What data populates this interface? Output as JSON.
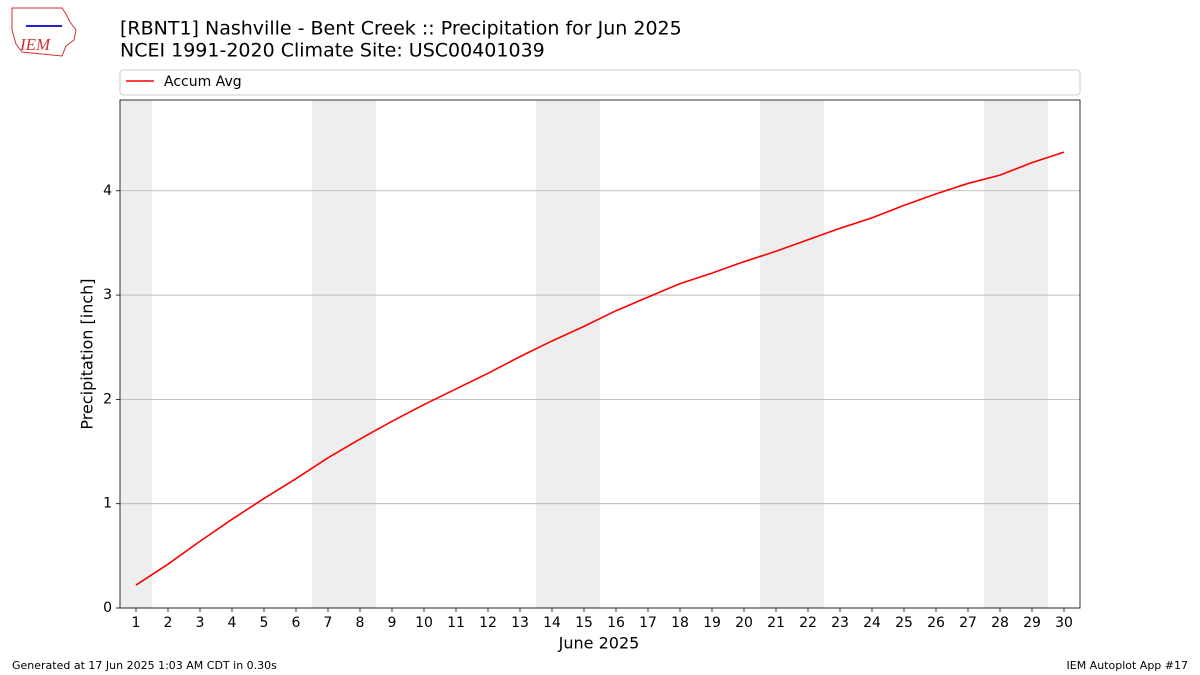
{
  "chart_data": {
    "type": "line",
    "title": "[RBNT1] Nashville - Bent Creek :: Precipitation for Jun 2025",
    "subtitle": "NCEI 1991-2020 Climate Site: USC00401039",
    "logo_text": "IEM",
    "x_label": "June 2025",
    "y_label": "Precipitation [inch]",
    "footer_left": "Generated at 17 Jun 2025 1:03 AM CDT in 0.30s",
    "footer_right": "IEM Autoplot App #17",
    "x": [
      1,
      2,
      3,
      4,
      5,
      6,
      7,
      8,
      9,
      10,
      11,
      12,
      13,
      14,
      15,
      16,
      17,
      18,
      19,
      20,
      21,
      22,
      23,
      24,
      25,
      26,
      27,
      28,
      29,
      30
    ],
    "series": [
      {
        "name": "Accum Avg",
        "color": "#ff0000",
        "values": [
          0.22,
          0.42,
          0.64,
          0.85,
          1.05,
          1.24,
          1.44,
          1.62,
          1.79,
          1.95,
          2.1,
          2.25,
          2.41,
          2.56,
          2.7,
          2.85,
          2.98,
          3.11,
          3.21,
          3.32,
          3.42,
          3.53,
          3.64,
          3.74,
          3.86,
          3.97,
          4.07,
          4.15,
          4.27,
          4.37
        ]
      }
    ],
    "shaded_spans": [
      [
        0.5,
        1.5
      ],
      [
        6.5,
        8.5
      ],
      [
        13.5,
        15.5
      ],
      [
        20.5,
        22.5
      ],
      [
        27.5,
        29.5
      ]
    ],
    "shade_color": "#eeeeee",
    "xlim": [
      0.5,
      30.5
    ],
    "xticks": [
      1,
      2,
      3,
      4,
      5,
      6,
      7,
      8,
      9,
      10,
      11,
      12,
      13,
      14,
      15,
      16,
      17,
      18,
      19,
      20,
      21,
      22,
      23,
      24,
      25,
      26,
      27,
      28,
      29,
      30
    ],
    "ylim": [
      0,
      4.87
    ],
    "yticks": [
      0,
      1,
      2,
      3,
      4
    ],
    "grid": true,
    "legend": "top"
  }
}
